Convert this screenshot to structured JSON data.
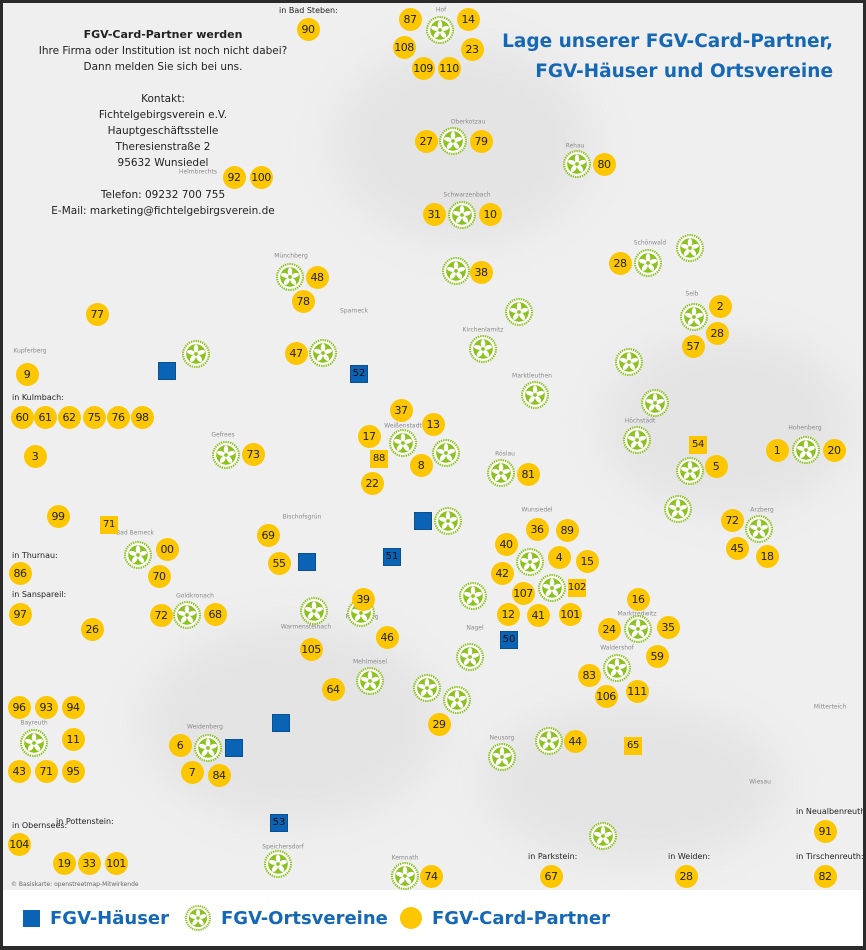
{
  "info": {
    "heading": "FGV-Card-Partner werden",
    "line1": "Ihre Firma oder Institution ist noch nicht dabei?",
    "line2": "Dann melden Sie sich bei uns.",
    "contact_label": "Kontakt:",
    "org": "Fichtelgebirgsverein e.V.",
    "office": "Hauptgeschäftsstelle",
    "street": "Theresienstraße 2",
    "city": "95632 Wunsiedel",
    "phone": "Telefon: 09232 700 755",
    "email": "E-Mail: marketing@fichtelgebirgsverein.de"
  },
  "title": {
    "line1": "Lage unserer FGV-Card-Partner,",
    "line2": "FGV-Häuser und Ortsvereine"
  },
  "credit": "© Basiskarte: openstreetmap-Mitwirkende",
  "group_labels": [
    "in Bad Steben:",
    "in Kulmbach:",
    "in Thurnau:",
    "in Sanspareil:",
    "in Obernsees:",
    "in Pottenstein:",
    "in Parkstein:",
    "in Weiden:",
    "in Neualbenreuth:",
    "in Tirschenreuth:"
  ],
  "places": [
    "Hof",
    "Oberkotzau",
    "Rehau",
    "Schwarzenbach",
    "Schönwald",
    "Selb",
    "Helmbrechts",
    "Münchberg",
    "Sparneck",
    "Kirchenlamitz",
    "Marktleuthen",
    "Kupferberg",
    "Gefrees",
    "Weißenstadt",
    "Röslau",
    "Höchstädt",
    "Hohenberg",
    "Bischofsgrün",
    "Wunsiedel",
    "Arzberg",
    "Bad Berneck",
    "Goldkronach",
    "Fichtelberg",
    "Marktredwitz",
    "Waldershof",
    "Warmensteinach",
    "Mehlmeisel",
    "Nagel",
    "Neusorg",
    "Weidenberg",
    "Bayreuth",
    "Speichersdorf",
    "Kemnath",
    "Wiesau",
    "Mitterteich"
  ],
  "card_partners": [
    "90",
    "87",
    "14",
    "108",
    "23",
    "109",
    "110",
    "27",
    "79",
    "80",
    "92",
    "100",
    "31",
    "10",
    "28",
    "38",
    "48",
    "78",
    "77",
    "2",
    "28",
    "57",
    "47",
    "9",
    "37",
    "13",
    "17",
    "8",
    "22",
    "73",
    "1",
    "20",
    "5",
    "81",
    "60",
    "61",
    "62",
    "75",
    "76",
    "98",
    "3",
    "99",
    "69",
    "55",
    "00",
    "70",
    "36",
    "89",
    "40",
    "4",
    "15",
    "42",
    "107",
    "12",
    "41",
    "101",
    "72",
    "45",
    "18",
    "86",
    "97",
    "26",
    "72",
    "68",
    "39",
    "46",
    "105",
    "16",
    "24",
    "35",
    "59",
    "83",
    "106",
    "111",
    "64",
    "29",
    "44",
    "96",
    "93",
    "94",
    "11",
    "43",
    "71",
    "95",
    "6",
    "7",
    "84",
    "104",
    "19",
    "33",
    "101",
    "74",
    "67",
    "28",
    "91",
    "82"
  ],
  "card_partner_squares": [
    "54",
    "71",
    "88",
    "102",
    "65"
  ],
  "fgv_houses": [
    "",
    "52",
    "",
    "",
    "51",
    "50",
    "",
    "",
    "53"
  ],
  "ortsvereine_count": 46,
  "legend": {
    "houses": "FGV-Häuser",
    "ortsvereine": "FGV-Ortsvereine",
    "card_partners": "FGV-Card-Partner"
  },
  "colors": {
    "card": "#fcc600",
    "house": "#0a63b5",
    "ortsverein": "#8cc21f",
    "title": "#1668b5"
  }
}
